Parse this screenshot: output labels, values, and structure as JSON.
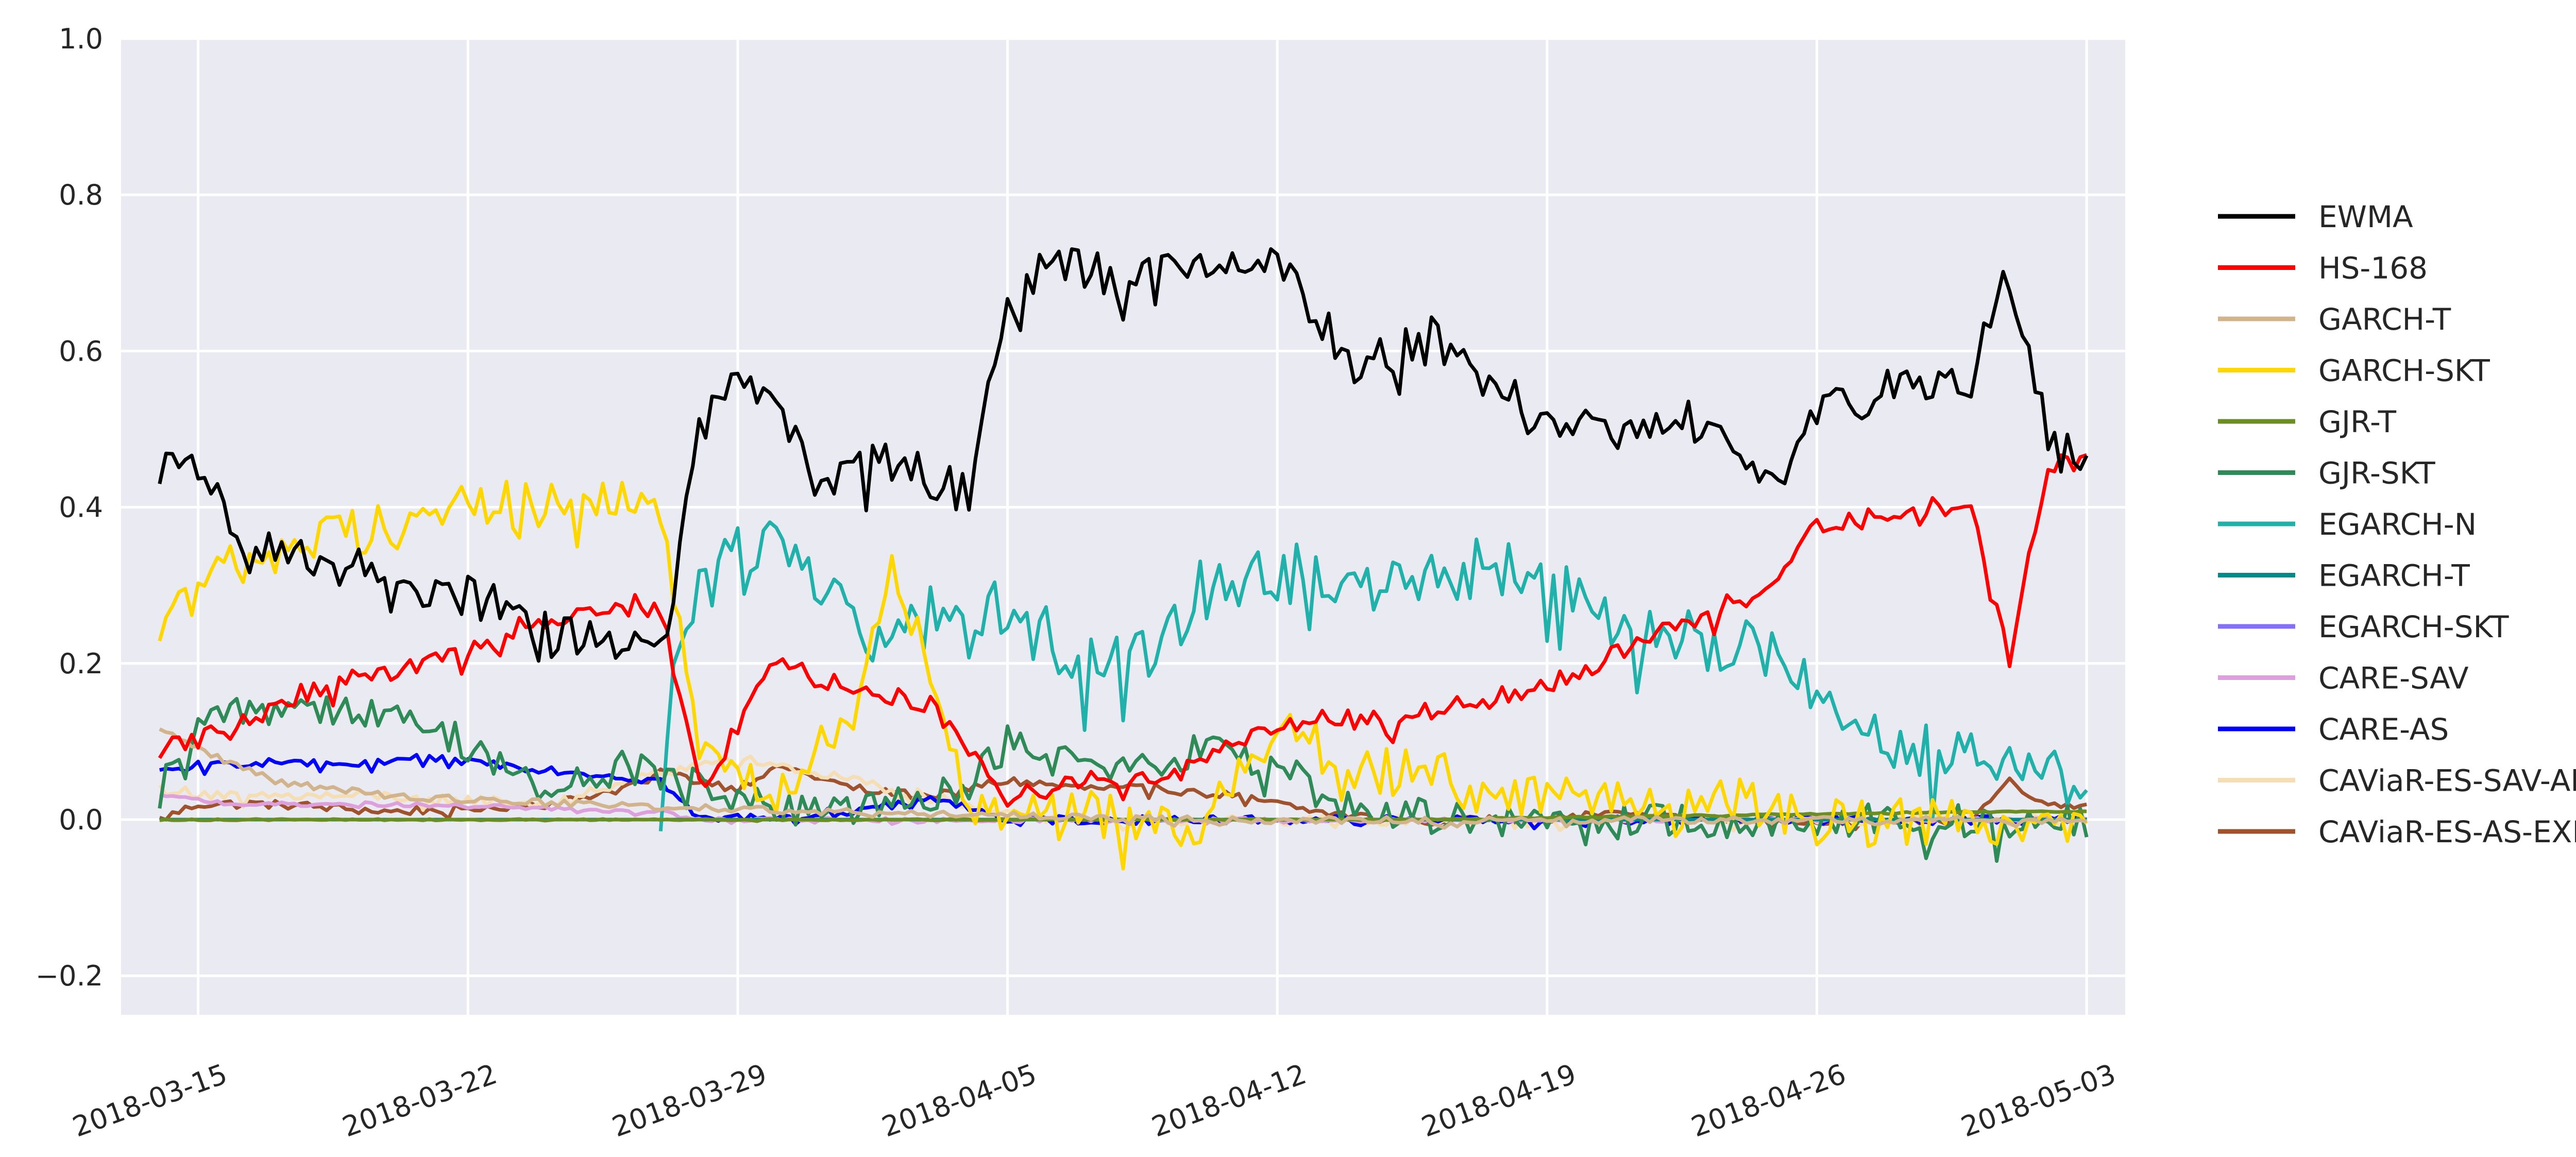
{
  "chart_data": {
    "type": "line",
    "title": "",
    "xlabel": "",
    "ylabel": "",
    "x_type": "date",
    "x_range": [
      "2018-03-13",
      "2018-05-04"
    ],
    "ylim": [
      -0.25,
      1.0
    ],
    "y_ticks": [
      -0.2,
      0.0,
      0.2,
      0.4,
      0.6,
      0.8,
      1.0
    ],
    "y_tick_labels": [
      "−0.2",
      "0.0",
      "0.2",
      "0.4",
      "0.6",
      "0.8",
      "1.0"
    ],
    "x_ticks": [
      "2018-03-15",
      "2018-03-22",
      "2018-03-29",
      "2018-04-05",
      "2018-04-12",
      "2018-04-19",
      "2018-04-26",
      "2018-05-03"
    ],
    "grid": true,
    "background": "#eaeaf2",
    "legend_position": "right",
    "series": [
      {
        "name": "EWMA",
        "color": "#000000",
        "x": [
          "2018-03-14",
          "2018-03-15",
          "2018-03-16",
          "2018-03-18",
          "2018-03-20",
          "2018-03-22",
          "2018-03-24",
          "2018-03-26",
          "2018-03-27",
          "2018-03-28",
          "2018-03-29",
          "2018-03-30",
          "2018-03-31",
          "2018-04-02",
          "2018-04-04",
          "2018-04-05",
          "2018-04-06",
          "2018-04-08",
          "2018-04-10",
          "2018-04-12",
          "2018-04-14",
          "2018-04-16",
          "2018-04-18",
          "2018-04-19",
          "2018-04-21",
          "2018-04-23",
          "2018-04-25",
          "2018-04-26",
          "2018-04-28",
          "2018-04-30",
          "2018-05-01",
          "2018-05-02",
          "2018-05-03"
        ],
        "y": [
          0.45,
          0.46,
          0.36,
          0.34,
          0.31,
          0.29,
          0.25,
          0.23,
          0.21,
          0.5,
          0.56,
          0.55,
          0.43,
          0.46,
          0.42,
          0.66,
          0.71,
          0.7,
          0.7,
          0.72,
          0.58,
          0.62,
          0.55,
          0.5,
          0.51,
          0.52,
          0.44,
          0.52,
          0.56,
          0.57,
          0.7,
          0.49,
          0.47
        ]
      },
      {
        "name": "HS-168",
        "color": "#ff0000",
        "x": [
          "2018-03-14",
          "2018-03-16",
          "2018-03-18",
          "2018-03-20",
          "2018-03-22",
          "2018-03-24",
          "2018-03-26",
          "2018-03-27",
          "2018-03-28",
          "2018-03-30",
          "2018-04-01",
          "2018-04-03",
          "2018-04-05",
          "2018-04-07",
          "2018-04-09",
          "2018-04-11",
          "2018-04-13",
          "2018-04-15",
          "2018-04-17",
          "2018-04-19",
          "2018-04-21",
          "2018-04-23",
          "2018-04-25",
          "2018-04-26",
          "2018-04-28",
          "2018-04-30",
          "2018-05-01",
          "2018-05-02",
          "2018-05-03"
        ],
        "y": [
          0.09,
          0.12,
          0.17,
          0.19,
          0.22,
          0.26,
          0.28,
          0.27,
          0.04,
          0.2,
          0.17,
          0.15,
          0.03,
          0.05,
          0.05,
          0.1,
          0.13,
          0.13,
          0.15,
          0.17,
          0.22,
          0.26,
          0.31,
          0.38,
          0.39,
          0.41,
          0.21,
          0.45,
          0.46
        ]
      },
      {
        "name": "GARCH-T",
        "color": "#d2b48c",
        "x": [
          "2018-03-14",
          "2018-03-15",
          "2018-03-17",
          "2018-03-20",
          "2018-03-25",
          "2018-04-01",
          "2018-04-10",
          "2018-04-20",
          "2018-04-30",
          "2018-05-03"
        ],
        "y": [
          0.12,
          0.09,
          0.05,
          0.03,
          0.02,
          0.01,
          0.0,
          0.0,
          0.0,
          0.0
        ]
      },
      {
        "name": "GARCH-SKT",
        "color": "#ffd700",
        "x": [
          "2018-03-14",
          "2018-03-15",
          "2018-03-16",
          "2018-03-18",
          "2018-03-20",
          "2018-03-22",
          "2018-03-24",
          "2018-03-26",
          "2018-03-27",
          "2018-03-28",
          "2018-03-30",
          "2018-04-01",
          "2018-04-02",
          "2018-04-04",
          "2018-04-06",
          "2018-04-10",
          "2018-04-12",
          "2018-04-14",
          "2018-04-16",
          "2018-04-18",
          "2018-04-20",
          "2018-04-22",
          "2018-04-24",
          "2018-04-26",
          "2018-05-03"
        ],
        "y": [
          0.26,
          0.3,
          0.33,
          0.36,
          0.38,
          0.4,
          0.41,
          0.42,
          0.4,
          0.08,
          0.04,
          0.15,
          0.34,
          0.03,
          0.01,
          0.0,
          0.13,
          0.06,
          0.07,
          0.02,
          0.04,
          0.01,
          0.03,
          0.0,
          0.0
        ]
      },
      {
        "name": "GJR-T",
        "color": "#6b8e23",
        "x": [
          "2018-03-14",
          "2018-03-20",
          "2018-04-01",
          "2018-04-15",
          "2018-04-30",
          "2018-05-03"
        ],
        "y": [
          0.0,
          0.0,
          0.0,
          0.0,
          0.01,
          0.01
        ]
      },
      {
        "name": "GJR-SKT",
        "color": "#2e8b57",
        "x": [
          "2018-03-14",
          "2018-03-15",
          "2018-03-16",
          "2018-03-18",
          "2018-03-20",
          "2018-03-22",
          "2018-03-24",
          "2018-03-26",
          "2018-03-28",
          "2018-03-30",
          "2018-04-02",
          "2018-04-04",
          "2018-04-05",
          "2018-04-08",
          "2018-04-10",
          "2018-04-12",
          "2018-04-14",
          "2018-04-20",
          "2018-05-03"
        ],
        "y": [
          0.05,
          0.12,
          0.14,
          0.15,
          0.13,
          0.1,
          0.03,
          0.07,
          0.05,
          0.01,
          0.02,
          0.05,
          0.1,
          0.06,
          0.09,
          0.07,
          0.01,
          0.0,
          0.0
        ]
      },
      {
        "name": "EGARCH-N",
        "color": "#20b2aa",
        "x": [
          "2018-03-27",
          "2018-03-28",
          "2018-03-29",
          "2018-03-30",
          "2018-04-01",
          "2018-04-02",
          "2018-04-03",
          "2018-04-04",
          "2018-04-05",
          "2018-04-06",
          "2018-04-07",
          "2018-04-09",
          "2018-04-10",
          "2018-04-12",
          "2018-04-14",
          "2018-04-16",
          "2018-04-18",
          "2018-04-19",
          "2018-04-21",
          "2018-04-23",
          "2018-04-25",
          "2018-04-26",
          "2018-04-28",
          "2018-04-30",
          "2018-05-01",
          "2018-05-02",
          "2018-05-03"
        ],
        "y": [
          0.08,
          0.33,
          0.36,
          0.37,
          0.26,
          0.22,
          0.27,
          0.26,
          0.28,
          0.24,
          0.2,
          0.21,
          0.3,
          0.32,
          0.31,
          0.32,
          0.33,
          0.3,
          0.25,
          0.23,
          0.22,
          0.15,
          0.11,
          0.08,
          0.06,
          0.05,
          0.06
        ]
      },
      {
        "name": "EGARCH-T",
        "color": "#008b8b",
        "x": [
          "2018-03-14",
          "2018-04-01",
          "2018-04-20",
          "2018-05-03"
        ],
        "y": [
          0.0,
          0.0,
          0.0,
          0.0
        ]
      },
      {
        "name": "EGARCH-SKT",
        "color": "#8470ff",
        "x": [
          "2018-03-14",
          "2018-04-01",
          "2018-04-20",
          "2018-05-03"
        ],
        "y": [
          0.0,
          0.0,
          0.0,
          0.0
        ]
      },
      {
        "name": "CARE-SAV",
        "color": "#dda0dd",
        "x": [
          "2018-03-14",
          "2018-03-16",
          "2018-03-20",
          "2018-03-24",
          "2018-03-27",
          "2018-03-28",
          "2018-04-05",
          "2018-04-20",
          "2018-05-03"
        ],
        "y": [
          0.03,
          0.02,
          0.02,
          0.015,
          0.01,
          0.0,
          0.0,
          0.0,
          0.0
        ]
      },
      {
        "name": "CARE-AS",
        "color": "#0000ff",
        "x": [
          "2018-03-14",
          "2018-03-15",
          "2018-03-17",
          "2018-03-19",
          "2018-03-21",
          "2018-03-23",
          "2018-03-25",
          "2018-03-27",
          "2018-03-28",
          "2018-04-01",
          "2018-04-03",
          "2018-04-05",
          "2018-04-10",
          "2018-04-20",
          "2018-05-03"
        ],
        "y": [
          0.06,
          0.07,
          0.075,
          0.07,
          0.08,
          0.07,
          0.06,
          0.05,
          0.0,
          0.01,
          0.03,
          0.0,
          0.0,
          0.0,
          0.0
        ]
      },
      {
        "name": "CAViaR-ES-SAV-AR",
        "color": "#f5deb3",
        "x": [
          "2018-03-14",
          "2018-03-16",
          "2018-03-20",
          "2018-03-24",
          "2018-03-27",
          "2018-03-29",
          "2018-03-31",
          "2018-04-02",
          "2018-04-04",
          "2018-04-06",
          "2018-04-15",
          "2018-05-03"
        ],
        "y": [
          0.04,
          0.03,
          0.03,
          0.02,
          0.06,
          0.08,
          0.06,
          0.04,
          0.02,
          0.0,
          0.0,
          0.0
        ]
      },
      {
        "name": "CAViaR-ES-AS-EXP",
        "color": "#a0522d",
        "x": [
          "2018-03-14",
          "2018-03-15",
          "2018-03-17",
          "2018-03-20",
          "2018-03-24",
          "2018-03-26",
          "2018-03-27",
          "2018-03-29",
          "2018-03-30",
          "2018-04-01",
          "2018-04-03",
          "2018-04-05",
          "2018-04-07",
          "2018-04-09",
          "2018-04-11",
          "2018-04-13",
          "2018-04-15",
          "2018-04-17",
          "2018-04-19",
          "2018-04-21",
          "2018-04-23",
          "2018-04-26",
          "2018-04-30",
          "2018-05-01",
          "2018-05-02",
          "2018-05-03"
        ],
        "y": [
          0.0,
          0.02,
          0.02,
          0.01,
          0.02,
          0.04,
          0.06,
          0.04,
          0.07,
          0.04,
          0.03,
          0.05,
          0.04,
          0.04,
          0.03,
          0.01,
          0.0,
          0.0,
          0.0,
          0.01,
          0.0,
          0.0,
          0.0,
          0.05,
          0.02,
          0.02
        ]
      }
    ]
  }
}
